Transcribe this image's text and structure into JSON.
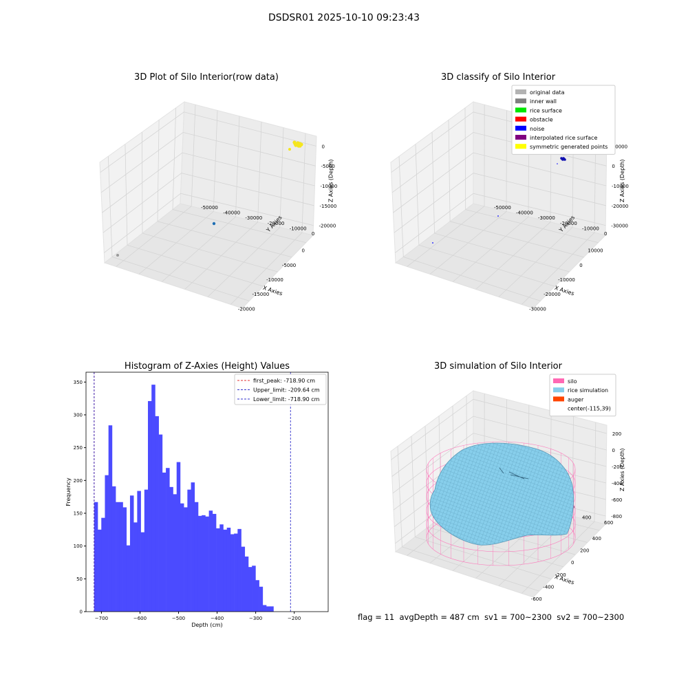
{
  "figure_title": "DSDSR01 2025-10-10 09:23:43",
  "status_line": "flag = 11  avgDepth = 487 cm  sv1 = 700~2300  sv2 = 700~2300",
  "chart_data": [
    {
      "id": "raw",
      "type": "scatter",
      "projection": "3d",
      "title": "3D Plot of Silo Interior(row data)",
      "xlabel": "X Axies",
      "ylabel": "Y Axies",
      "zlabel": "Z Axies (Depth)",
      "xticks": [
        "-20000",
        "-15000",
        "-10000",
        "-5000",
        "0"
      ],
      "yticks": [
        "0",
        "-10000",
        "-20000",
        "-30000",
        "-40000",
        "-50000"
      ],
      "zticks": [
        "0",
        "-5000",
        "-10000",
        "-15000",
        "-20000"
      ],
      "grid": true,
      "colors": {
        "cluster": "#f5e61e",
        "point": "#1f6fb4",
        "outlier": "#9a9a9a"
      }
    },
    {
      "id": "classify",
      "type": "scatter",
      "projection": "3d",
      "title": "3D classify of Silo Interior",
      "xlabel": "X Axies",
      "ylabel": "Y Axies",
      "zlabel": "Z Axies (Depth)",
      "xticks": [
        "-30000",
        "-20000",
        "-10000",
        "0",
        "10000"
      ],
      "yticks": [
        "0",
        "-10000",
        "-20000",
        "-30000",
        "-40000",
        "-50000"
      ],
      "zticks": [
        "10000",
        "0",
        "-10000",
        "-20000",
        "-30000"
      ],
      "grid": true,
      "legend_position": "top-right",
      "legend": [
        {
          "label": "original data",
          "color": "#b3b3b3"
        },
        {
          "label": "inner wall",
          "color": "#808080"
        },
        {
          "label": "rice surface",
          "color": "#00e600"
        },
        {
          "label": "obstacle",
          "color": "#ff0000"
        },
        {
          "label": "noise",
          "color": "#0000ff"
        },
        {
          "label": "interpolated rice surface",
          "color": "#800080"
        },
        {
          "label": "symmetric generated points",
          "color": "#ffff00"
        }
      ]
    },
    {
      "id": "histogram",
      "type": "bar",
      "title": "Histogram of Z-Axies (Height) Values",
      "xlabel": "Depth (cm)",
      "ylabel": "Frequency",
      "xlim": [
        -740,
        -112
      ],
      "ylim": [
        0,
        365
      ],
      "xticks": [
        -700,
        -600,
        -500,
        -400,
        -300,
        -200
      ],
      "yticks": [
        0,
        50,
        100,
        150,
        200,
        250,
        300,
        350
      ],
      "bar_color": "#4b4bff",
      "bin_start": -718.9,
      "bin_width": 9.3,
      "values": [
        167,
        125,
        143,
        208,
        284,
        191,
        167,
        167,
        159,
        101,
        177,
        136,
        184,
        121,
        186,
        321,
        346,
        298,
        270,
        212,
        219,
        190,
        179,
        228,
        165,
        159,
        186,
        197,
        167,
        146,
        147,
        145,
        154,
        149,
        127,
        133,
        125,
        128,
        118,
        119,
        126,
        99,
        84,
        68,
        70,
        48,
        38,
        10,
        8,
        8
      ],
      "vlines": [
        {
          "label": "first_peak: -718.90 cm",
          "x": -718.9,
          "color": "#e03030"
        },
        {
          "label": "Upper_limit: -209.64 cm",
          "x": -209.64,
          "color": "#3030cc"
        },
        {
          "label": "Lower_limit: -718.90 cm",
          "x": -718.9,
          "color": "#3030cc"
        }
      ],
      "legend_position": "top-right",
      "grid": false
    },
    {
      "id": "simulation",
      "type": "surface",
      "projection": "3d",
      "title": "3D simulation of Silo Interior",
      "xlabel": "X Axies",
      "ylabel": "Y Axies",
      "zlabel": "Z Axies (Depth)",
      "xticks": [
        "-600",
        "-400",
        "-200",
        "0",
        "200",
        "400"
      ],
      "yticks": [
        "600",
        "400",
        "200",
        "0",
        "-200",
        "-400"
      ],
      "zticks": [
        "200",
        "0",
        "-200",
        "-400",
        "-600",
        "-800"
      ],
      "grid": true,
      "legend_position": "top-right",
      "legend": [
        {
          "label": "silo",
          "color": "#ff69b4",
          "kind": "patch"
        },
        {
          "label": "rice simulation",
          "color": "#87ceeb",
          "kind": "patch"
        },
        {
          "label": "auger",
          "color": "#ff4500",
          "kind": "patch"
        },
        {
          "label": "center(-115,39)",
          "color": "#ffffff",
          "kind": "none"
        }
      ]
    }
  ]
}
